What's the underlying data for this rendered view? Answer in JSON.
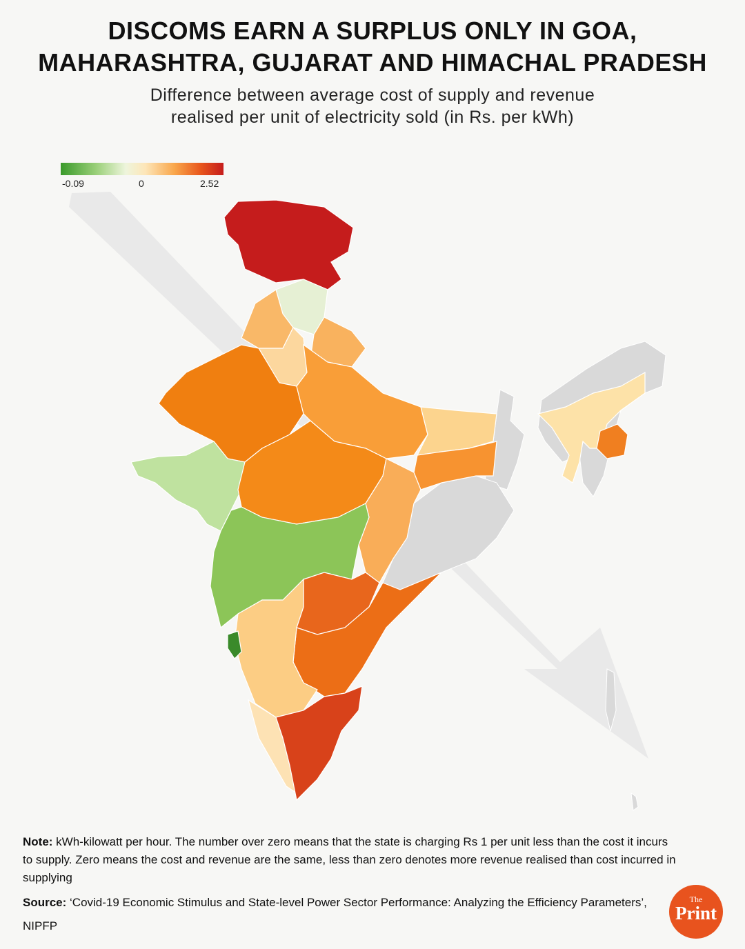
{
  "title": {
    "line1": "DISCOMS EARN A SURPLUS ONLY IN GOA,",
    "line2": "MAHARASHTRA, GUJARAT AND HIMACHAL PRADESH"
  },
  "subtitle": {
    "line1": "Difference between average cost of supply and revenue",
    "line2": "realised per unit of electricity sold (in Rs. per kWh)"
  },
  "legend": {
    "min_label": "-0.09",
    "mid_label": "0",
    "max_label": "2.52",
    "colors": {
      "low": "#3a9a2a",
      "zero": "#eef5dc",
      "high": "#c51c1c"
    }
  },
  "map": {
    "colors": {
      "no_data": "#d9d9d9",
      "arrow": "#e6e6e6"
    },
    "regions": [
      {
        "name": "Jammu and Kashmir",
        "color": "#c51c1c"
      },
      {
        "name": "Himachal Pradesh",
        "color": "#e6f0d4"
      },
      {
        "name": "Punjab",
        "color": "#f9b868"
      },
      {
        "name": "Haryana",
        "color": "#fcd79e"
      },
      {
        "name": "Uttarakhand",
        "color": "#f9b25e"
      },
      {
        "name": "Rajasthan",
        "color": "#f07f10"
      },
      {
        "name": "Uttar Pradesh",
        "color": "#f99e38"
      },
      {
        "name": "Bihar",
        "color": "#fcd48e"
      },
      {
        "name": "Gujarat",
        "color": "#bfe29f"
      },
      {
        "name": "Madhya Pradesh",
        "color": "#f48a18"
      },
      {
        "name": "Jharkhand",
        "color": "#f79330"
      },
      {
        "name": "Chhattisgarh",
        "color": "#f9ad58"
      },
      {
        "name": "Maharashtra",
        "color": "#8cc558"
      },
      {
        "name": "Telangana",
        "color": "#e8661c"
      },
      {
        "name": "Andhra Pradesh",
        "color": "#ec6e16"
      },
      {
        "name": "Karnataka",
        "color": "#fccd84"
      },
      {
        "name": "Goa",
        "color": "#3a8a2a"
      },
      {
        "name": "Kerala",
        "color": "#fde2b4"
      },
      {
        "name": "Tamil Nadu",
        "color": "#d8421a"
      },
      {
        "name": "Assam",
        "color": "#fde2a8"
      },
      {
        "name": "Manipur",
        "color": "#f07f20"
      }
    ]
  },
  "note": {
    "label": "Note:",
    "text": " kWh-kilowatt per hour. The number over zero means that the state is charging Rs 1 per unit less than the cost it incurs to supply. Zero means the cost and revenue are the same, less than zero denotes more revenue realised than cost incurred in supplying"
  },
  "source": {
    "label": "Source:",
    "text": " ‘Covid-19 Economic Stimulus and State-level Power Sector Performance: Analyzing the Efficiency Parameters’, NIPFP"
  },
  "logo": {
    "the": "The",
    "print": "Print"
  }
}
